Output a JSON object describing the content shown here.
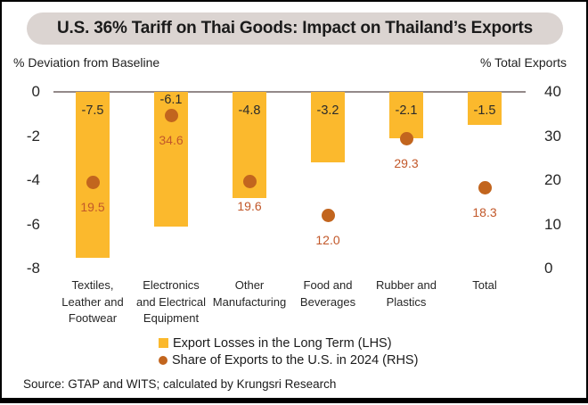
{
  "title": "U.S. 36% Tariff on Thai Goods: Impact on Thailand’s Exports",
  "axes": {
    "left_label": "% Deviation from Baseline",
    "right_label": "% Total Exports"
  },
  "source": "Source: GTAP and WITS; calculated by Krungsri Research",
  "colors": {
    "bar": "#FBB92D",
    "dot": "#C2651E",
    "dot_label_text": "#C2582A",
    "bar_label_text": "#2B2B2B",
    "banner_bg": "#DBD4D1",
    "zero_line": "#938989",
    "border": "#000000"
  },
  "chart_data": {
    "type": "bar",
    "subtype": "combo bar (LHS) + scatter dots (RHS)",
    "categories": [
      [
        "Textiles,",
        "Leather and",
        "Footwear"
      ],
      [
        "Electronics",
        "and Electrical",
        "Equipment"
      ],
      [
        "Other",
        "Manufacturing"
      ],
      [
        "Food and",
        "Beverages"
      ],
      [
        "Rubber and",
        "Plastics"
      ],
      [
        "Total"
      ]
    ],
    "series": [
      {
        "name": "Export Losses in the Long Term (LHS)",
        "kind": "bar",
        "marker": "square",
        "axis": "left",
        "values": [
          -7.5,
          -6.1,
          -4.8,
          -3.2,
          -2.1,
          -1.5
        ]
      },
      {
        "name": "Share of Exports to the U.S. in 2024 (RHS)",
        "kind": "scatter",
        "marker": "circle",
        "axis": "right",
        "values": [
          19.5,
          34.6,
          19.6,
          12.0,
          29.3,
          18.3
        ]
      }
    ],
    "left_axis": {
      "ticks": [
        0,
        -2,
        -4,
        -6,
        -8
      ],
      "range": [
        0,
        -8
      ]
    },
    "right_axis": {
      "ticks": [
        40,
        30,
        20,
        10,
        0
      ],
      "range": [
        0,
        40
      ]
    },
    "grid": "off",
    "legend_position": "bottom-center"
  }
}
